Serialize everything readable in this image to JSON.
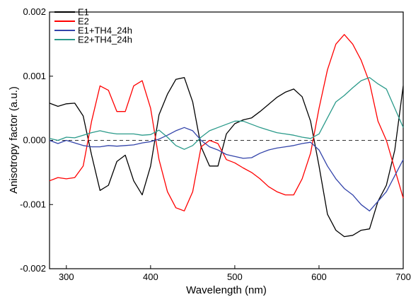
{
  "chart_data": {
    "type": "line",
    "xlabel": "Wavelength (nm)",
    "ylabel": "Anisotropy factor (a.u.)",
    "xlim": [
      280,
      700
    ],
    "ylim": [
      -0.002,
      0.002
    ],
    "xticks": [
      300,
      400,
      500,
      600,
      700
    ],
    "yticks": [
      -0.002,
      -0.001,
      0.0,
      0.001,
      0.002
    ],
    "xtick_labels": [
      "300",
      "400",
      "500",
      "600",
      "700"
    ],
    "ytick_labels": [
      "-0.002",
      "-0.001",
      "0.000",
      "0.001",
      "0.002"
    ],
    "zero_line": true,
    "grid": false,
    "legend_position": "top-left",
    "series": [
      {
        "name": "E1",
        "color": "#000000",
        "x": [
          280,
          290,
          300,
          310,
          320,
          330,
          340,
          350,
          360,
          370,
          380,
          390,
          400,
          410,
          420,
          430,
          440,
          450,
          460,
          470,
          480,
          490,
          500,
          510,
          520,
          530,
          540,
          550,
          560,
          570,
          580,
          590,
          600,
          610,
          620,
          630,
          640,
          650,
          660,
          670,
          680,
          690,
          700
        ],
        "y": [
          0.00058,
          0.00053,
          0.00057,
          0.00058,
          0.00038,
          -0.00023,
          -0.00078,
          -0.0007,
          -0.00033,
          -0.00023,
          -0.00063,
          -0.00085,
          -0.0004,
          0.0004,
          0.00072,
          0.00095,
          0.00098,
          0.0006,
          -0.0001,
          -0.0004,
          -0.0004,
          0.0001,
          0.00026,
          0.00032,
          0.00035,
          0.00045,
          0.00056,
          0.00067,
          0.00075,
          0.0008,
          0.00068,
          0.0003,
          -0.0004,
          -0.00115,
          -0.0014,
          -0.0015,
          -0.00148,
          -0.0014,
          -0.00138,
          -0.00095,
          -0.0007,
          -0.00015,
          0.00085
        ]
      },
      {
        "name": "E2",
        "color": "#ff0000",
        "x": [
          280,
          290,
          300,
          310,
          320,
          330,
          340,
          350,
          360,
          370,
          380,
          390,
          400,
          410,
          420,
          430,
          440,
          450,
          460,
          470,
          480,
          490,
          500,
          510,
          520,
          530,
          540,
          550,
          560,
          570,
          580,
          590,
          600,
          610,
          620,
          630,
          640,
          650,
          660,
          670,
          680,
          690,
          700
        ],
        "y": [
          -0.00063,
          -0.00058,
          -0.0006,
          -0.00058,
          -0.0004,
          0.0003,
          0.00085,
          0.00078,
          0.00045,
          0.00045,
          0.00085,
          0.00093,
          0.0005,
          -0.0003,
          -0.0008,
          -0.00105,
          -0.0011,
          -0.0008,
          -0.0001,
          0.0,
          -5e-05,
          -0.0003,
          -0.00035,
          -0.00043,
          -0.0005,
          -0.0006,
          -0.00072,
          -0.0008,
          -0.00085,
          -0.00085,
          -0.0006,
          -0.0002,
          0.0005,
          0.0011,
          0.0015,
          0.00165,
          0.0015,
          0.00125,
          0.0009,
          0.0003,
          0.0,
          -0.00045,
          -0.0009
        ]
      },
      {
        "name": "E1+TH4_24h",
        "color": "#3344aa",
        "x": [
          280,
          290,
          300,
          310,
          320,
          330,
          340,
          350,
          360,
          370,
          380,
          390,
          400,
          410,
          420,
          430,
          440,
          450,
          460,
          470,
          480,
          490,
          500,
          510,
          520,
          530,
          540,
          550,
          560,
          570,
          580,
          590,
          600,
          610,
          620,
          630,
          640,
          650,
          660,
          670,
          680,
          690,
          700
        ],
        "y": [
          0.0,
          -5e-05,
          0.0,
          -4e-05,
          -8e-05,
          -0.0001,
          -0.0001,
          -8e-05,
          -9e-05,
          -8e-05,
          -7e-05,
          -4e-05,
          -2e-05,
          2e-05,
          8e-05,
          0.00015,
          0.0002,
          0.00015,
          0.0,
          -0.0001,
          -0.00015,
          -0.00022,
          -0.00025,
          -0.00028,
          -0.00027,
          -0.0002,
          -0.00015,
          -0.00012,
          -0.0001,
          -8e-05,
          -5e-05,
          -3e-05,
          -0.00015,
          -0.0004,
          -0.0006,
          -0.00075,
          -0.00085,
          -0.001,
          -0.0011,
          -0.00095,
          -0.0008,
          -0.00055,
          -0.0003
        ]
      },
      {
        "name": "E2+TH4_24h",
        "color": "#2a9a8a",
        "x": [
          280,
          290,
          300,
          310,
          320,
          330,
          340,
          350,
          360,
          370,
          380,
          390,
          400,
          410,
          420,
          430,
          440,
          450,
          460,
          470,
          480,
          490,
          500,
          510,
          520,
          530,
          540,
          550,
          560,
          570,
          580,
          590,
          600,
          610,
          620,
          630,
          640,
          650,
          660,
          670,
          680,
          690,
          700
        ],
        "y": [
          3e-05,
          0.0,
          5e-05,
          4e-05,
          8e-05,
          0.00012,
          0.00015,
          0.00012,
          0.0001,
          0.0001,
          0.0001,
          8e-05,
          9e-05,
          0.00016,
          5e-05,
          -8e-05,
          -0.00014,
          -8e-05,
          5e-05,
          0.00015,
          0.0002,
          0.00025,
          0.0003,
          0.0003,
          0.00025,
          0.0002,
          0.00016,
          0.00012,
          0.0001,
          8e-05,
          5e-05,
          3e-05,
          0.0001,
          0.00035,
          0.0006,
          0.0007,
          0.00082,
          0.00093,
          0.00098,
          0.00088,
          0.0008,
          0.0005,
          0.0002
        ]
      }
    ]
  }
}
